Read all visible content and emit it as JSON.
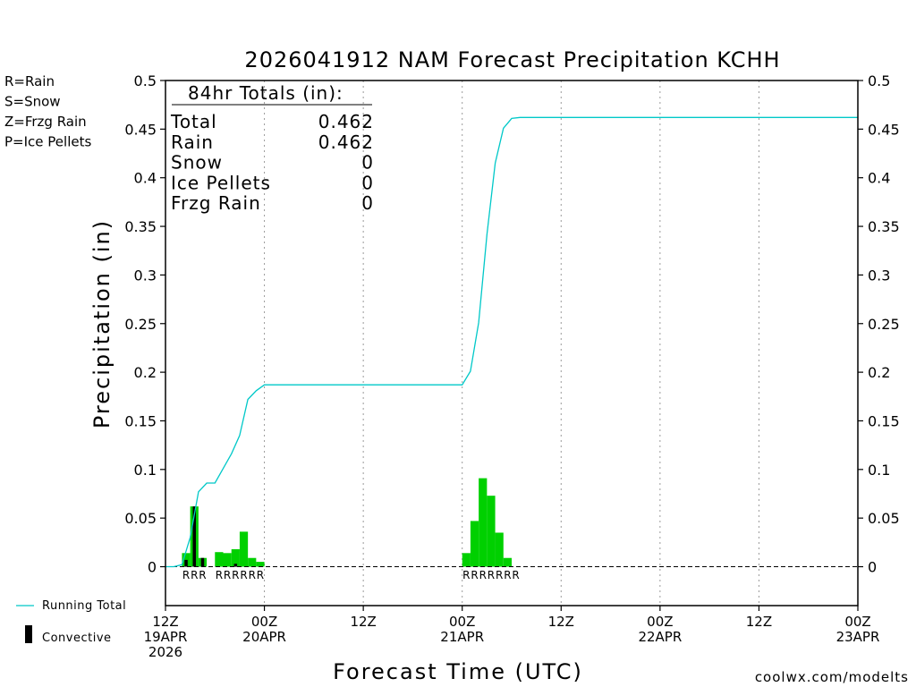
{
  "chart_data": {
    "type": "bar",
    "title": "2026041912 NAM Forecast Precipitation KCHH",
    "xlabel": "Forecast Time (UTC)",
    "ylabel": "Precipitation (in)",
    "ylim": [
      -0.04,
      0.5
    ],
    "yticks": [
      0,
      0.05,
      0.1,
      0.15,
      0.2,
      0.25,
      0.3,
      0.35,
      0.4,
      0.45,
      0.5
    ],
    "ytick_labels": [
      "0",
      "0.05",
      "0.1",
      "0.15",
      "0.2",
      "0.25",
      "0.3",
      "0.35",
      "0.4",
      "0.45",
      "0.5"
    ],
    "x_unit": "forecast hour",
    "xlim": [
      0,
      84
    ],
    "grid_hours": [
      12,
      24,
      36,
      48,
      60,
      72
    ],
    "xticks": [
      {
        "hour": 0,
        "lines": [
          "12Z",
          "19APR",
          "2026"
        ]
      },
      {
        "hour": 12,
        "lines": [
          "00Z",
          "20APR"
        ]
      },
      {
        "hour": 24,
        "lines": [
          "12Z"
        ]
      },
      {
        "hour": 36,
        "lines": [
          "00Z",
          "21APR"
        ]
      },
      {
        "hour": 48,
        "lines": [
          "12Z"
        ]
      },
      {
        "hour": 60,
        "lines": [
          "00Z",
          "22APR"
        ]
      },
      {
        "hour": 72,
        "lines": [
          "12Z"
        ]
      },
      {
        "hour": 84,
        "lines": [
          "00Z",
          "23APR"
        ]
      }
    ],
    "bar_width_hours": 1,
    "series": [
      {
        "name": "Rain",
        "color": "#00d000",
        "hours": [
          3,
          4,
          5,
          6,
          7,
          8,
          9,
          10,
          11,
          12,
          13,
          37,
          38,
          39,
          40,
          41,
          42
        ],
        "values": [
          0.014,
          0.062,
          0.009,
          0.0,
          0.015,
          0.014,
          0.018,
          0.036,
          0.009,
          0.005,
          0.0,
          0.014,
          0.047,
          0.091,
          0.073,
          0.035,
          0.009
        ]
      },
      {
        "name": "Convective",
        "color": "#000000",
        "hours": [
          3,
          4,
          5,
          9
        ],
        "values": [
          0.007,
          0.062,
          0.009,
          0.003
        ]
      },
      {
        "name": "Running Total",
        "color": "#00c8c8",
        "hours": [
          0,
          1,
          2,
          3,
          4,
          5,
          6,
          7,
          8,
          9,
          10,
          11,
          12,
          13,
          14,
          33,
          34,
          35,
          36,
          37,
          38,
          39,
          40,
          41,
          42,
          43,
          44,
          84
        ],
        "values": [
          0,
          0,
          0.002,
          0.03,
          0.077,
          0.086,
          0.086,
          0.101,
          0.116,
          0.135,
          0.172,
          0.181,
          0.187,
          0.187,
          0.187,
          0.187,
          0.187,
          0.187,
          0.187,
          0.201,
          0.251,
          0.342,
          0.415,
          0.451,
          0.461,
          0.462,
          0.462,
          0.462
        ]
      }
    ],
    "precip_type_labels": [
      {
        "hour": 3,
        "text": "R"
      },
      {
        "hour": 4,
        "text": "R"
      },
      {
        "hour": 5,
        "text": "R"
      },
      {
        "hour": 7,
        "text": "R"
      },
      {
        "hour": 8,
        "text": "R"
      },
      {
        "hour": 9,
        "text": "R"
      },
      {
        "hour": 10,
        "text": "R"
      },
      {
        "hour": 11,
        "text": "R"
      },
      {
        "hour": 12,
        "text": "R"
      },
      {
        "hour": 37,
        "text": "R"
      },
      {
        "hour": 38,
        "text": "R"
      },
      {
        "hour": 39,
        "text": "R"
      },
      {
        "hour": 40,
        "text": "R"
      },
      {
        "hour": 41,
        "text": "R"
      },
      {
        "hour": 42,
        "text": "R"
      },
      {
        "hour": 43,
        "text": "R"
      }
    ],
    "type_legend": [
      {
        "text": "R=Rain",
        "color": "#22dd22"
      },
      {
        "text": "S=Snow",
        "color": "#3355dd"
      },
      {
        "text": "Z=Frzg Rain",
        "color": "#ee8833"
      },
      {
        "text": "P=Ice Pellets",
        "color": "#dd2288"
      }
    ],
    "series_legend": [
      {
        "text": "Running Total",
        "color": "#00c8c8",
        "kind": "line"
      },
      {
        "text": "Convective",
        "color": "#000000",
        "kind": "bar"
      }
    ],
    "totals_box": {
      "heading": "84hr Totals (in):",
      "rows": [
        {
          "label": "Total",
          "value": "0.462"
        },
        {
          "label": "Rain",
          "value": "0.462"
        },
        {
          "label": "Snow",
          "value": "0"
        },
        {
          "label": "Ice Pellets",
          "value": "0"
        },
        {
          "label": "Frzg Rain",
          "value": "0"
        }
      ]
    },
    "credit": "coolwx.com/modelts",
    "credit_color": "#c83232"
  }
}
